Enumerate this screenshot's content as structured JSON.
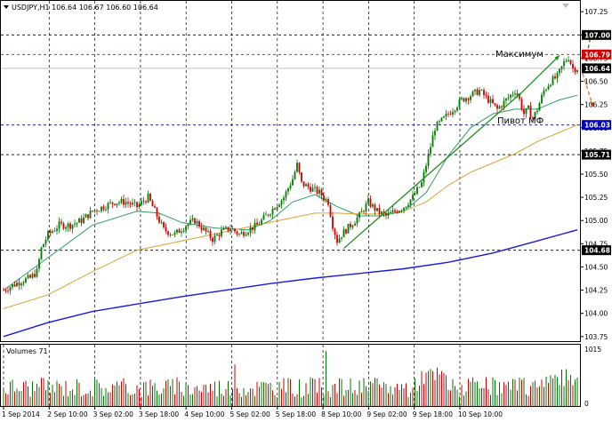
{
  "header": {
    "symbol_line": "USDJPY,H1  106.64 106.67 106.60 106.64",
    "volume_label": "Volumes 71"
  },
  "colors": {
    "bull_candle": "#007a00",
    "bear_candle": "#cc0000",
    "ma_fast": "#2e9f5e",
    "ma_mid": "#e0a030",
    "ma_slow": "#1a1ae0",
    "red_level": "#d00000",
    "blue_level": "#0000c0",
    "arrow_up": "#1f8f1f",
    "arrow_down": "#f07030"
  },
  "annotations": {
    "max_label": "Максимум",
    "pivot_label": "Пивот МФ"
  },
  "chart_data": {
    "type": "candlestick",
    "symbol": "USDJPY",
    "timeframe": "H1",
    "ohlc_current": {
      "open": 106.64,
      "high": 106.67,
      "low": 106.6,
      "close": 106.64
    },
    "ylim": [
      103.7,
      107.3
    ],
    "y_ticks": [
      "107.25",
      "107.00",
      "106.75",
      "106.50",
      "106.25",
      "106.00",
      "105.75",
      "105.50",
      "105.25",
      "105.00",
      "104.75",
      "104.50",
      "104.25",
      "104.00",
      "103.75"
    ],
    "x_ticks": [
      "1 Sep 2014",
      "2 Sep 10:00",
      "3 Sep 02:00",
      "3 Sep 18:00",
      "4 Sep 10:00",
      "5 Sep 02:00",
      "5 Sep 18:00",
      "8 Sep 10:00",
      "9 Sep 02:00",
      "9 Sep 18:00",
      "10 Sep 10:00"
    ],
    "price_badges": [
      {
        "value": "107.00",
        "style": "black"
      },
      {
        "value": "106.79",
        "style": "red"
      },
      {
        "value": "106.64",
        "style": "black"
      },
      {
        "value": "106.03",
        "style": "blue"
      },
      {
        "value": "105.71",
        "style": "black"
      },
      {
        "value": "104.68",
        "style": "black"
      }
    ],
    "horizontal_levels": [
      {
        "value": 107.0,
        "color": "black"
      },
      {
        "value": 106.79,
        "color": "red"
      },
      {
        "value": 106.64,
        "color": "gray"
      },
      {
        "value": 106.03,
        "color": "blue"
      },
      {
        "value": 105.71,
        "color": "black"
      },
      {
        "value": 104.68,
        "color": "black"
      }
    ],
    "volume_ticks": [
      "1015",
      "0"
    ],
    "close_path": [
      [
        0,
        104.25
      ],
      [
        4,
        104.3
      ],
      [
        8,
        104.35
      ],
      [
        12,
        104.38
      ],
      [
        15,
        104.45
      ],
      [
        17,
        104.7
      ],
      [
        20,
        104.85
      ],
      [
        25,
        104.95
      ],
      [
        30,
        104.95
      ],
      [
        35,
        105.0
      ],
      [
        40,
        105.1
      ],
      [
        45,
        105.15
      ],
      [
        50,
        105.2
      ],
      [
        55,
        105.2
      ],
      [
        60,
        105.15
      ],
      [
        65,
        105.25
      ],
      [
        68,
        105.1
      ],
      [
        72,
        104.9
      ],
      [
        77,
        104.85
      ],
      [
        82,
        104.95
      ],
      [
        86,
        105.0
      ],
      [
        90,
        104.9
      ],
      [
        94,
        104.8
      ],
      [
        98,
        104.88
      ],
      [
        102,
        104.92
      ],
      [
        106,
        104.85
      ],
      [
        110,
        104.9
      ],
      [
        114,
        104.95
      ],
      [
        118,
        105.05
      ],
      [
        122,
        105.15
      ],
      [
        126,
        105.25
      ],
      [
        130,
        105.45
      ],
      [
        132,
        105.6
      ],
      [
        134,
        105.4
      ],
      [
        138,
        105.35
      ],
      [
        142,
        105.3
      ],
      [
        146,
        105.2
      ],
      [
        148,
        104.95
      ],
      [
        150,
        104.78
      ],
      [
        152,
        104.85
      ],
      [
        156,
        104.95
      ],
      [
        160,
        105.05
      ],
      [
        164,
        105.2
      ],
      [
        168,
        105.1
      ],
      [
        172,
        105.05
      ],
      [
        176,
        105.1
      ],
      [
        180,
        105.15
      ],
      [
        184,
        105.25
      ],
      [
        188,
        105.4
      ],
      [
        190,
        105.6
      ],
      [
        192,
        105.8
      ],
      [
        194,
        106.0
      ],
      [
        198,
        106.1
      ],
      [
        202,
        106.2
      ],
      [
        206,
        106.3
      ],
      [
        210,
        106.35
      ],
      [
        214,
        106.4
      ],
      [
        218,
        106.3
      ],
      [
        222,
        106.2
      ],
      [
        226,
        106.3
      ],
      [
        230,
        106.4
      ],
      [
        232,
        106.3
      ],
      [
        234,
        106.15
      ],
      [
        236,
        106.2
      ],
      [
        238,
        106.1
      ],
      [
        240,
        106.2
      ],
      [
        243,
        106.4
      ],
      [
        246,
        106.5
      ],
      [
        249,
        106.55
      ],
      [
        252,
        106.7
      ],
      [
        254,
        106.76
      ],
      [
        256,
        106.64
      ]
    ],
    "series": [
      {
        "name": "",
        "kind": "ma_fast",
        "points": [
          [
            0,
            104.25
          ],
          [
            20,
            104.6
          ],
          [
            40,
            104.95
          ],
          [
            60,
            105.1
          ],
          [
            70,
            105.08
          ],
          [
            80,
            104.98
          ],
          [
            95,
            104.92
          ],
          [
            110,
            104.9
          ],
          [
            120,
            105.0
          ],
          [
            130,
            105.2
          ],
          [
            140,
            105.28
          ],
          [
            150,
            105.15
          ],
          [
            160,
            105.05
          ],
          [
            170,
            105.05
          ],
          [
            180,
            105.1
          ],
          [
            190,
            105.3
          ],
          [
            200,
            105.7
          ],
          [
            210,
            106.0
          ],
          [
            220,
            106.15
          ],
          [
            230,
            106.2
          ],
          [
            240,
            106.2
          ],
          [
            250,
            106.3
          ],
          [
            258,
            106.35
          ]
        ]
      },
      {
        "name": "",
        "kind": "ma_mid",
        "points": [
          [
            0,
            104.05
          ],
          [
            20,
            104.2
          ],
          [
            40,
            104.45
          ],
          [
            60,
            104.68
          ],
          [
            80,
            104.78
          ],
          [
            100,
            104.88
          ],
          [
            120,
            104.98
          ],
          [
            140,
            105.08
          ],
          [
            150,
            105.08
          ],
          [
            160,
            105.07
          ],
          [
            170,
            105.07
          ],
          [
            180,
            105.1
          ],
          [
            190,
            105.2
          ],
          [
            200,
            105.38
          ],
          [
            210,
            105.52
          ],
          [
            220,
            105.62
          ],
          [
            230,
            105.72
          ],
          [
            240,
            105.85
          ],
          [
            250,
            105.95
          ],
          [
            258,
            106.03
          ]
        ]
      },
      {
        "name": "",
        "kind": "ma_slow",
        "points": [
          [
            0,
            103.75
          ],
          [
            20,
            103.9
          ],
          [
            40,
            104.02
          ],
          [
            60,
            104.1
          ],
          [
            80,
            104.18
          ],
          [
            100,
            104.25
          ],
          [
            120,
            104.32
          ],
          [
            140,
            104.38
          ],
          [
            160,
            104.43
          ],
          [
            180,
            104.48
          ],
          [
            200,
            104.55
          ],
          [
            220,
            104.65
          ],
          [
            240,
            104.78
          ],
          [
            258,
            104.9
          ]
        ]
      }
    ],
    "trend_lines": [
      {
        "from": [
          153,
          104.7
        ],
        "to": [
          233,
          106.38
        ]
      },
      {
        "from": [
          233,
          106.38
        ],
        "to": [
          250,
          106.78
        ]
      }
    ],
    "volumes_shape": "varying hourly volume bars; spike near 5 Sep 02:00 (~1015)"
  }
}
